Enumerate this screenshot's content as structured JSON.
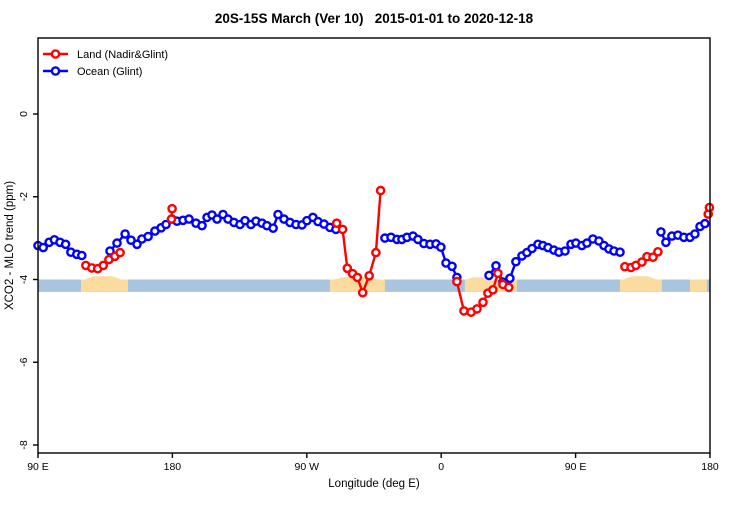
{
  "chart_data": {
    "type": "line",
    "title": "20S-15S March (Ver 10)   2015-01-01 to 2020-12-18",
    "xlabel": "Longitude (deg E)",
    "ylabel": "XCO2 - MLO trend (ppm)",
    "x_axis": {
      "span_deg": [
        0,
        450
      ],
      "ticks": [
        {
          "deg": 0,
          "label": "90 E"
        },
        {
          "deg": 90,
          "label": "180"
        },
        {
          "deg": 180,
          "label": "90 W"
        },
        {
          "deg": 270,
          "label": "0"
        },
        {
          "deg": 360,
          "label": "90 E"
        },
        {
          "deg": 450,
          "label": "180"
        }
      ]
    },
    "y_axis": {
      "range": [
        -8.2,
        1.8
      ],
      "ticks": [
        {
          "v": 0,
          "label": "0"
        },
        {
          "v": -2,
          "label": "-2"
        },
        {
          "v": -4,
          "label": "-4"
        },
        {
          "v": -6,
          "label": "-6"
        },
        {
          "v": -8,
          "label": "-8"
        }
      ]
    },
    "band": {
      "color": "#A9C4DF",
      "from": -4.0,
      "to": -4.3
    },
    "land_shading": {
      "color": "#FBDC9E",
      "regions": [
        {
          "from": 28.8,
          "to": 60.3,
          "hump_from": 31,
          "hump_to": 56,
          "peak": -3.92
        },
        {
          "from": 195.5,
          "to": 232.3,
          "hump_from": 198,
          "hump_to": 228,
          "peak": -3.94
        },
        {
          "from": 285.9,
          "to": 320.7,
          "hump_from": 287,
          "hump_to": 303,
          "peak": -3.95
        },
        {
          "from": 389.7,
          "to": 417.8,
          "hump_from": 392,
          "hump_to": 414,
          "peak": -3.92
        },
        {
          "from": 436.6,
          "to": 447.9,
          "hump_from": 438,
          "hump_to": 446,
          "peak": -4.0
        }
      ]
    },
    "series": [
      {
        "name": "Ocean (Glint)",
        "color": "#0000FF",
        "segments": [
          [
            [
              0,
              -3.18
            ],
            [
              3.5,
              -3.23
            ],
            [
              7.4,
              -3.1
            ],
            [
              11.0,
              -3.04
            ],
            [
              14.7,
              -3.1
            ],
            [
              18.5,
              -3.15
            ],
            [
              22.0,
              -3.34
            ],
            [
              26.0,
              -3.39
            ],
            [
              29.3,
              -3.42
            ]
          ],
          [
            [
              48.2,
              -3.31
            ],
            [
              52.9,
              -3.12
            ],
            [
              58.3,
              -2.9
            ],
            [
              62.3,
              -3.05
            ],
            [
              66.3,
              -3.15
            ],
            [
              69.6,
              -3.02
            ],
            [
              73.7,
              -2.96
            ],
            [
              78.3,
              -2.83
            ],
            [
              82.4,
              -2.75
            ],
            [
              85.7,
              -2.67
            ],
            [
              89.7,
              -2.54
            ],
            [
              93.1,
              -2.59
            ],
            [
              97.1,
              -2.57
            ],
            [
              101.1,
              -2.54
            ],
            [
              105.8,
              -2.64
            ],
            [
              109.8,
              -2.7
            ],
            [
              113.2,
              -2.5
            ],
            [
              116.5,
              -2.44
            ],
            [
              119.9,
              -2.54
            ],
            [
              123.9,
              -2.43
            ],
            [
              127.2,
              -2.54
            ],
            [
              131.2,
              -2.62
            ],
            [
              135.3,
              -2.67
            ],
            [
              138.6,
              -2.58
            ],
            [
              142.6,
              -2.67
            ],
            [
              146.0,
              -2.59
            ],
            [
              150.0,
              -2.64
            ],
            [
              153.3,
              -2.7
            ],
            [
              157.4,
              -2.76
            ],
            [
              160.7,
              -2.43
            ],
            [
              164.7,
              -2.54
            ],
            [
              168.7,
              -2.62
            ],
            [
              172.8,
              -2.67
            ],
            [
              176.8,
              -2.68
            ],
            [
              180.1,
              -2.58
            ],
            [
              184.1,
              -2.5
            ],
            [
              187.5,
              -2.6
            ],
            [
              191.5,
              -2.66
            ],
            [
              195.5,
              -2.74
            ],
            [
              199.5,
              -2.79
            ]
          ],
          [
            [
              232.3,
              -3.0
            ],
            [
              236.4,
              -2.98
            ],
            [
              240.4,
              -3.03
            ],
            [
              243.7,
              -3.03
            ],
            [
              247.1,
              -2.98
            ],
            [
              251.1,
              -2.95
            ],
            [
              254.4,
              -3.03
            ],
            [
              258.4,
              -3.13
            ],
            [
              262.5,
              -3.15
            ],
            [
              266.5,
              -3.14
            ],
            [
              269.8,
              -3.22
            ],
            [
              273.2,
              -3.6
            ],
            [
              277.2,
              -3.68
            ],
            [
              280.5,
              -3.95
            ]
          ],
          [
            [
              302.0,
              -3.9
            ],
            [
              306.7,
              -3.67
            ],
            [
              311.3,
              -4.06
            ],
            [
              316.0,
              -3.97
            ],
            [
              320.0,
              -3.57
            ],
            [
              324.1,
              -3.43
            ],
            [
              327.4,
              -3.35
            ],
            [
              330.8,
              -3.25
            ],
            [
              334.8,
              -3.15
            ],
            [
              338.1,
              -3.18
            ],
            [
              341.5,
              -3.23
            ],
            [
              345.5,
              -3.29
            ],
            [
              348.8,
              -3.34
            ],
            [
              352.9,
              -3.31
            ],
            [
              356.9,
              -3.15
            ],
            [
              360.2,
              -3.12
            ],
            [
              364.2,
              -3.18
            ],
            [
              367.6,
              -3.12
            ],
            [
              371.6,
              -3.02
            ],
            [
              375.6,
              -3.07
            ],
            [
              379.0,
              -3.18
            ],
            [
              382.3,
              -3.26
            ],
            [
              385.7,
              -3.31
            ],
            [
              389.7,
              -3.34
            ]
          ],
          [
            [
              417.1,
              -2.85
            ],
            [
              420.5,
              -3.1
            ],
            [
              424.5,
              -2.95
            ],
            [
              428.5,
              -2.93
            ],
            [
              432.5,
              -2.98
            ],
            [
              436.6,
              -2.98
            ],
            [
              439.9,
              -2.9
            ],
            [
              443.3,
              -2.72
            ],
            [
              446.6,
              -2.65
            ]
          ]
        ]
      },
      {
        "name": "Land (Nadir&Glint)",
        "color": "#FF0000",
        "segments": [
          [
            [
              32.0,
              -3.66
            ],
            [
              36.0,
              -3.72
            ],
            [
              40.0,
              -3.74
            ],
            [
              43.7,
              -3.66
            ],
            [
              47.5,
              -3.52
            ],
            [
              51.5,
              -3.44
            ],
            [
              55.0,
              -3.35
            ]
          ],
          [
            [
              89.4,
              -2.54
            ],
            [
              89.8,
              -2.29
            ]
          ],
          [
            [
              200.0,
              -2.64
            ],
            [
              204.0,
              -2.79
            ],
            [
              207.1,
              -3.73
            ],
            [
              210.7,
              -3.86
            ],
            [
              213.8,
              -3.95
            ],
            [
              217.4,
              -4.32
            ],
            [
              221.8,
              -3.91
            ],
            [
              226.3,
              -3.35
            ],
            [
              229.4,
              -1.85
            ]
          ],
          [
            [
              280.5,
              -4.05
            ],
            [
              285.2,
              -4.76
            ],
            [
              290.0,
              -4.79
            ],
            [
              294.0,
              -4.71
            ],
            [
              298.0,
              -4.55
            ],
            [
              301.3,
              -4.33
            ],
            [
              304.6,
              -4.25
            ],
            [
              308.0,
              -3.85
            ],
            [
              311.3,
              -4.12
            ],
            [
              315.3,
              -4.19
            ]
          ],
          [
            [
              393.0,
              -3.69
            ],
            [
              397.1,
              -3.71
            ],
            [
              400.4,
              -3.66
            ],
            [
              404.4,
              -3.58
            ],
            [
              407.8,
              -3.45
            ],
            [
              411.8,
              -3.46
            ],
            [
              415.1,
              -3.33
            ]
          ],
          [
            [
              448.8,
              -2.42
            ],
            [
              449.6,
              -2.26
            ]
          ]
        ]
      }
    ],
    "legend": {
      "items": [
        {
          "label": "Land (Nadir&Glint)",
          "color": "#FF0000"
        },
        {
          "label": "Ocean (Glint)",
          "color": "#0000FF"
        }
      ],
      "position": "top-left"
    },
    "grid": false
  }
}
